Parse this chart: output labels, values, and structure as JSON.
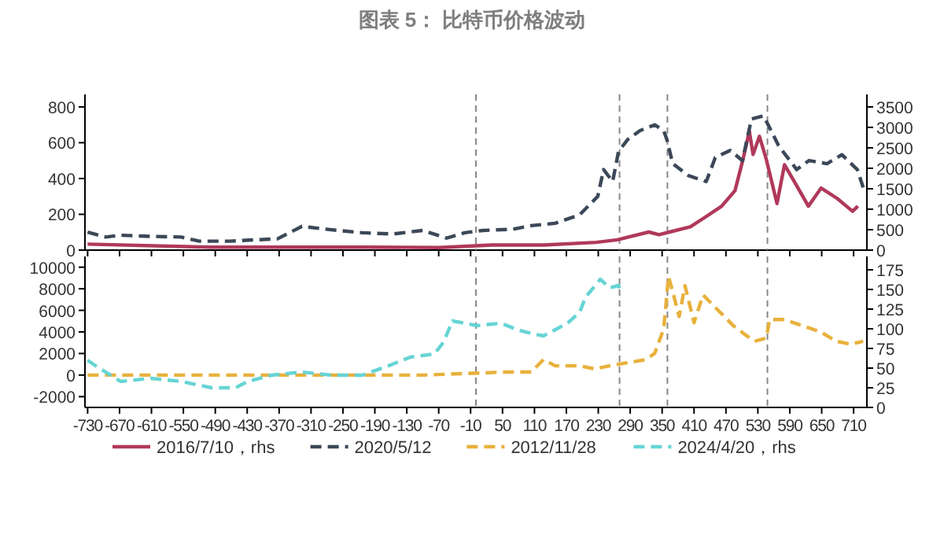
{
  "chart_data": [
    {
      "type": "line",
      "title": "图表 5：  比特币价格波动",
      "xlim": [
        -735,
        735
      ],
      "xticks": [
        -730,
        -670,
        -610,
        -550,
        -490,
        -430,
        -370,
        -310,
        -250,
        -190,
        -130,
        -70,
        -10,
        50,
        110,
        170,
        230,
        290,
        350,
        410,
        470,
        530,
        590,
        650,
        710
      ],
      "tick_labels": "y",
      "ylim": [
        0,
        870
      ],
      "yticks": [
        0,
        200,
        400,
        600,
        800
      ],
      "y2lim": [
        0,
        3806
      ],
      "y2ticks": [
        0,
        500,
        1000,
        1500,
        2000,
        2500,
        3000,
        3500
      ],
      "legend": "bottom",
      "grid": false,
      "ref_lines": [
        {
          "axis": "x",
          "value": 0,
          "line_style": "dashed",
          "color": "#888888"
        },
        {
          "axis": "x",
          "value": 270,
          "line_style": "dashed",
          "color": "#888888"
        },
        {
          "axis": "x",
          "value": 360,
          "line_style": "dashed",
          "color": "#888888"
        },
        {
          "axis": "x",
          "value": 548,
          "line_style": "dashed",
          "color": "#888888"
        }
      ],
      "series": [
        {
          "name": "2016/7/10，rhs",
          "color": "#b0395b",
          "axis": "y2",
          "line_style": "solid",
          "x": [
            -730,
            -500,
            -200,
            -69,
            30,
            128,
            226,
            266,
            285,
            325,
            344,
            364,
            403,
            433,
            462,
            487,
            502,
            514,
            521,
            533,
            546,
            566,
            580,
            600,
            625,
            649,
            679,
            708,
            718
          ],
          "values": [
            146,
            73,
            73,
            63,
            126,
            126,
            190,
            253,
            316,
            442,
            379,
            442,
            569,
            822,
            1074,
            1454,
            2212,
            2907,
            2338,
            2781,
            2212,
            1138,
            2086,
            1643,
            1074,
            1517,
            1264,
            948,
            1074
          ]
        },
        {
          "name": "2020/5/12",
          "color": "#3c4858",
          "axis": "y",
          "line_style": "dashed",
          "x": [
            -730,
            -696,
            -668,
            -611,
            -554,
            -520,
            -463,
            -418,
            -373,
            -327,
            -282,
            -214,
            -157,
            -100,
            -55,
            -21,
            13,
            70,
            104,
            149,
            195,
            229,
            240,
            257,
            268,
            285,
            308,
            336,
            353,
            359,
            370,
            399,
            433,
            450,
            478,
            501,
            518,
            541,
            569,
            603,
            626,
            660,
            688,
            717,
            728
          ],
          "values": [
            100,
            73,
            83,
            77,
            73,
            50,
            50,
            57,
            63,
            133,
            117,
            97,
            90,
            110,
            67,
            97,
            110,
            117,
            137,
            150,
            197,
            300,
            450,
            383,
            550,
            617,
            667,
            700,
            667,
            617,
            483,
            417,
            383,
            517,
            557,
            500,
            733,
            750,
            583,
            450,
            500,
            483,
            533,
            450,
            350
          ]
        }
      ]
    },
    {
      "type": "line",
      "xlim": [
        -735,
        735
      ],
      "xticks": [
        -730,
        -670,
        -610,
        -550,
        -490,
        -430,
        -370,
        -310,
        -250,
        -190,
        -130,
        -70,
        -10,
        50,
        110,
        170,
        230,
        290,
        350,
        410,
        470,
        530,
        590,
        650,
        710
      ],
      "ylim": [
        -3000,
        11000
      ],
      "yticks": [
        -2000,
        0,
        2000,
        4000,
        6000,
        8000,
        10000
      ],
      "y2lim": [
        0,
        192
      ],
      "y2ticks": [
        0,
        25,
        50,
        75,
        100,
        125,
        150,
        175
      ],
      "legend": "bottom",
      "grid": false,
      "ref_lines": [
        {
          "axis": "x",
          "value": 0,
          "line_style": "dashed",
          "color": "#888888"
        },
        {
          "axis": "x",
          "value": 270,
          "line_style": "dashed",
          "color": "#888888"
        },
        {
          "axis": "x",
          "value": 360,
          "line_style": "dashed",
          "color": "#888888"
        },
        {
          "axis": "x",
          "value": 548,
          "line_style": "dashed",
          "color": "#888888"
        }
      ],
      "series": [
        {
          "name": "2012/11/28",
          "color": "#e8b13c",
          "axis": "y",
          "line_style": "dashed",
          "x": [
            -730,
            -441,
            -100,
            58,
            104,
            127,
            149,
            195,
            223,
            251,
            285,
            319,
            336,
            353,
            362,
            370,
            382,
            393,
            410,
            427,
            444,
            467,
            484,
            507,
            524,
            546,
            552,
            580,
            614,
            648,
            677,
            705,
            728
          ],
          "values": [
            0,
            0,
            0,
            286,
            286,
            1430,
            857,
            857,
            571,
            857,
            1143,
            1430,
            2000,
            4286,
            9142,
            7714,
            5428,
            8286,
            4857,
            7428,
            6571,
            5428,
            4571,
            3714,
            3143,
            3428,
            5143,
            5143,
            4571,
            4000,
            3143,
            2857,
            3143
          ]
        },
        {
          "name": "2024/4/20，rhs",
          "color": "#66d4d4",
          "axis": "y2",
          "line_style": "dashed",
          "x": [
            -730,
            -713,
            -668,
            -611,
            -554,
            -497,
            -452,
            -429,
            -384,
            -327,
            -271,
            -214,
            -168,
            -123,
            -78,
            -61,
            -44,
            2,
            47,
            81,
            104,
            127,
            172,
            195,
            206,
            234,
            251,
            268,
            272
          ],
          "values": [
            60,
            52,
            33,
            37,
            33,
            25,
            25,
            33,
            41,
            45,
            41,
            41,
            52,
            64,
            68,
            83,
            110,
            104,
            107,
            98,
            94,
            91,
            107,
            121,
            140,
            163,
            152,
            155,
            148
          ]
        }
      ]
    }
  ]
}
